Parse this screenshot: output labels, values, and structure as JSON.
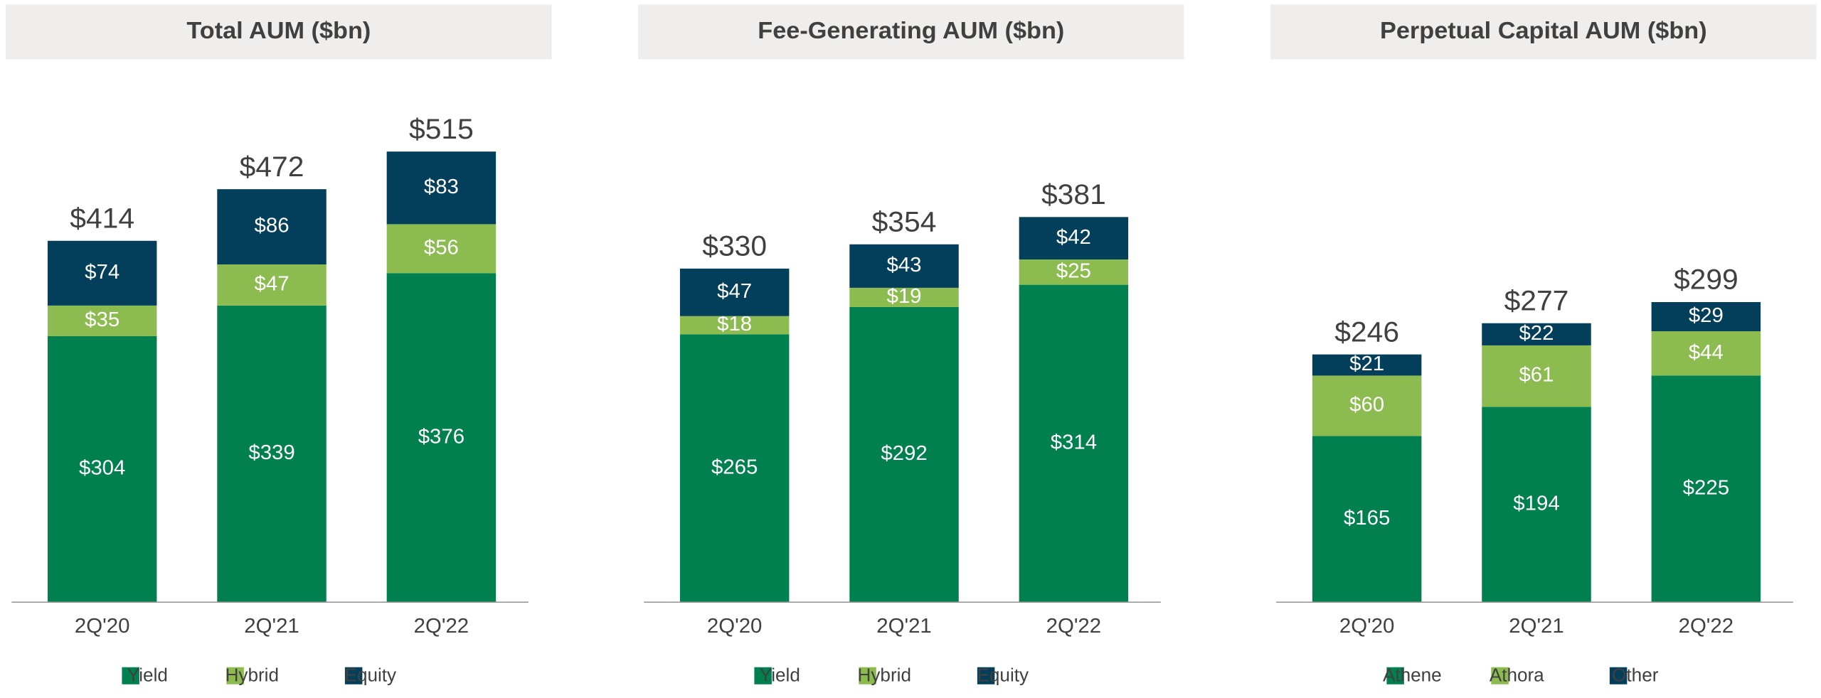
{
  "chart_data": [
    {
      "type": "bar",
      "stacked": true,
      "title": "Total AUM ($bn)",
      "categories": [
        "2Q'20",
        "2Q'21",
        "2Q'22"
      ],
      "series": [
        {
          "name": "Yield",
          "color": "#007f4f",
          "values": [
            304,
            339,
            376
          ],
          "value_labels": [
            "$304",
            "$339",
            "$376"
          ]
        },
        {
          "name": "Hybrid",
          "color": "#8cbb4f",
          "values": [
            35,
            47,
            56
          ],
          "value_labels": [
            "$35",
            "$47",
            "$56"
          ]
        },
        {
          "name": "Equity",
          "color": "#033f5a",
          "values": [
            74,
            86,
            83
          ],
          "value_labels": [
            "$74",
            "$86",
            "$83"
          ]
        }
      ],
      "totals": [
        414,
        472,
        515
      ],
      "total_labels": [
        "$414",
        "$472",
        "$515"
      ],
      "ylim": [
        0,
        610
      ],
      "legend": "bottom"
    },
    {
      "type": "bar",
      "stacked": true,
      "title": "Fee-Generating AUM ($bn)",
      "categories": [
        "2Q'20",
        "2Q'21",
        "2Q'22"
      ],
      "series": [
        {
          "name": "Yield",
          "color": "#007f4f",
          "values": [
            265,
            292,
            314
          ],
          "value_labels": [
            "$265",
            "$292",
            "$314"
          ]
        },
        {
          "name": "Hybrid",
          "color": "#8cbb4f",
          "values": [
            18,
            19,
            25
          ],
          "value_labels": [
            "$18",
            "$19",
            "$25"
          ]
        },
        {
          "name": "Equity",
          "color": "#033f5a",
          "values": [
            47,
            43,
            42
          ],
          "value_labels": [
            "$47",
            "$43",
            "$42"
          ]
        }
      ],
      "totals": [
        330,
        354,
        381
      ],
      "total_labels": [
        "$330",
        "$354",
        "$381"
      ],
      "ylim": [
        0,
        528
      ],
      "legend": "bottom"
    },
    {
      "type": "bar",
      "stacked": true,
      "title": "Perpetual Capital AUM ($bn)",
      "categories": [
        "2Q'20",
        "2Q'21",
        "2Q'22"
      ],
      "series": [
        {
          "name": "Athene",
          "color": "#007f4f",
          "values": [
            165,
            194,
            225
          ],
          "value_labels": [
            "$165",
            "$194",
            "$225"
          ]
        },
        {
          "name": "Athora",
          "color": "#8cbb4f",
          "values": [
            60,
            61,
            44
          ],
          "value_labels": [
            "$60",
            "$61",
            "$44"
          ]
        },
        {
          "name": "Other",
          "color": "#033f5a",
          "values": [
            21,
            22,
            29
          ],
          "value_labels": [
            "$21",
            "$22",
            "$29"
          ]
        }
      ],
      "totals": [
        246,
        277,
        299
      ],
      "total_labels": [
        "$246",
        "$277",
        "$299"
      ],
      "ylim": [
        0,
        530
      ],
      "legend": "bottom"
    }
  ]
}
